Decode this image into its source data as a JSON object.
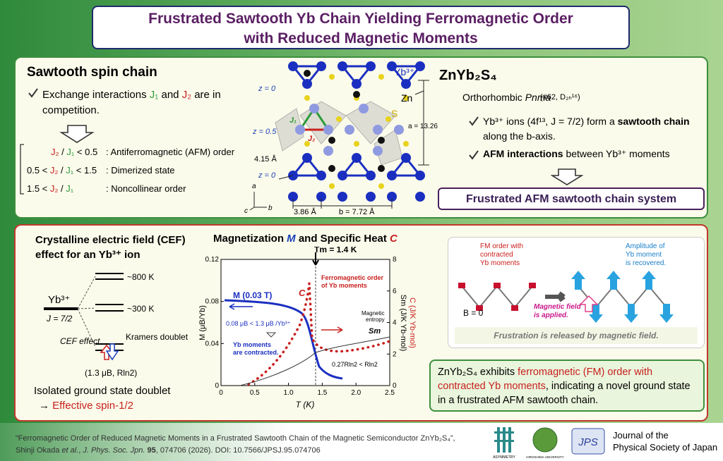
{
  "header": {
    "title_lines": [
      "Frustrated Sawtooth Yb Chain Yielding Ferromagnetic Order",
      "with Reduced Magnetic Moments"
    ]
  },
  "sawtooth": {
    "heading": "Sawtooth spin chain",
    "bullet": [
      "Exchange interactions ",
      "J₁",
      " and ",
      "J₂",
      " are in competition."
    ],
    "conditions": [
      {
        "ratio": [
          "J₂",
          " / ",
          "J₁",
          " < 0.5"
        ],
        "state": ": Antiferromagnetic (AFM) order"
      },
      {
        "ratio": [
          "0.5 < ",
          "J₂",
          " / ",
          "J₁",
          " < 1.5"
        ],
        "state": ": Dimerized state"
      },
      {
        "ratio": [
          "1.5 < ",
          "J₂",
          " / ",
          "J₁"
        ],
        "state": ": Noncollinear order"
      }
    ]
  },
  "structure": {
    "yb": "Yb³⁺",
    "zn": "Zn",
    "s": "S",
    "z_labels": [
      "z = 0",
      "z = 0.5",
      "z = 0"
    ],
    "j1": "J₁",
    "j2": "J₂",
    "a_length": "a = 13.26 Å",
    "side": "4.15 Å",
    "spacing": "3.86 Å",
    "b_length": "b = 7.72 Å",
    "axes": [
      "a",
      "b",
      "c"
    ]
  },
  "compound": {
    "heading": "ZnYb₂S₄",
    "symmetry": [
      "Orthorhombic ",
      "Pnma"
    ],
    "space_group": "(#62, D₂ₕ¹⁶)",
    "bullets": [
      [
        "Yb³⁺ ions (4f¹³, J = 7/2) form a ",
        "sawtooth chain",
        " along the b-axis."
      ],
      [
        "AFM interactions",
        " between Yb³⁺ moments"
      ]
    ],
    "result": "Frustrated AFM sawtooth chain system"
  },
  "cef": {
    "heading": [
      "Crystalline electric field (CEF)",
      "effect for an Yb³⁺ ion"
    ],
    "ion": "Yb³⁺",
    "j": "J = 7/2",
    "levels": [
      "~800 K",
      "~300 K"
    ],
    "cef_effect": "CEF effect",
    "kramers": "Kramers doublet",
    "moment": "(1.3 μB, Rln2)",
    "conclusion": "Isolated ground state doublet",
    "spin": [
      "→ ",
      "Effective spin-1/2"
    ]
  },
  "magnetization": {
    "title": [
      "Magnetization ",
      "M",
      " and Specific Heat ",
      "C"
    ],
    "xlim": [
      0,
      2.5
    ],
    "xticks": [
      0,
      0.5,
      {
        "value": 1,
        "label": "1.0"
      },
      1.5,
      {
        "value": 2,
        "label": "2.0"
      },
      2.5
    ],
    "ylim": [
      0,
      0.12
    ],
    "yticks": [
      0,
      0.04,
      0.08,
      0.12
    ],
    "y2lim": [
      0,
      8
    ],
    "y2ticks": [
      0,
      2,
      4,
      6,
      8
    ],
    "x_label": "T (K)",
    "y_label": "M (μB/Yb)",
    "y2_labels": [
      "Sm (J/K Yb-mol)",
      "C (J/K Yb-mol)"
    ],
    "annotations": {
      "tm": "Tm = 1.4 K",
      "m_field": "M (0.03 T)",
      "c": "C",
      "fm": [
        "Ferromagnetic order",
        "of Yb moments"
      ],
      "moment": "0.08 μB < 1.3 μB /Yb³⁺",
      "contracted": [
        "Yb moments",
        "are contracted."
      ],
      "entropy": [
        "Magnetic",
        "entropy"
      ],
      "sm": "Sm",
      "entropy_value": "0.27Rln2 < Rln2"
    }
  },
  "fm_diagram": {
    "fm_label": [
      "FM order with",
      "contracted",
      "Yb moments"
    ],
    "recovered": [
      "Amplitude of",
      "Yb moment",
      "is recovered."
    ],
    "b0": "B = 0",
    "field": [
      "Magnetic field",
      "is applied."
    ],
    "caption": "Frustration is released by magnetic field."
  },
  "summary": [
    "ZnYb₂S₄ exhibits ",
    "ferromagnetic (FM)  order with contracted Yb moments",
    ", indicating a novel ground state in a frustrated AFM sawtooth chain."
  ],
  "footer": {
    "reference_line1": "“Ferromagnetic Order of Reduced Magnetic Moments in a Frustrated Sawtooth Chain of the Magnetic Semiconductor ZnYb₂S₄”,",
    "reference_line2": [
      "Shinji Okada ",
      "et al.",
      ", ",
      "J. Phys. Soc. Jpn.",
      " ",
      "95",
      ", 074706 (2026). DOI: 10.7566/JPSJ.95.074706"
    ],
    "logos": [
      "ASYMMETRY",
      "HIROSHIMA UNIVERSITY",
      "JPS"
    ],
    "journal": [
      "Journal of the",
      "Physical Society of Japan"
    ]
  }
}
